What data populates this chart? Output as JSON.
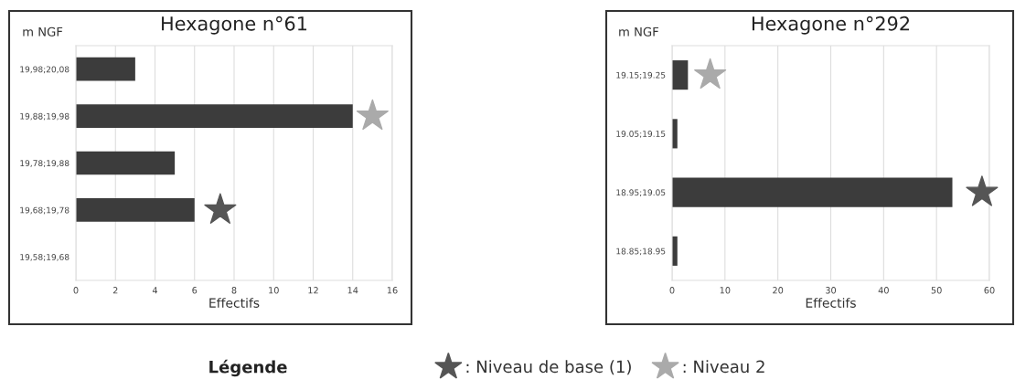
{
  "chart_data": [
    {
      "type": "bar",
      "orientation": "horizontal",
      "title": "Hexagone n°61",
      "xlabel": "Effectifs",
      "ylabel": "m NGF",
      "categories": [
        "19,98;20,08",
        "19,88;19,98",
        "19,78;19,88",
        "19,68;19,78",
        "19,58;19,68"
      ],
      "series": [
        {
          "color": "#3c3c3c",
          "values": [
            3,
            14,
            5,
            6,
            0
          ]
        },
        {
          "type": "scatter",
          "name": ": Niveau de base (1)",
          "color": "#555555",
          "values": [
            null,
            null,
            null,
            7.3,
            null
          ]
        },
        {
          "type": "scatter",
          "name": ": Niveau 2",
          "color": "#aaaaaa",
          "values": [
            null,
            15,
            null,
            null,
            null
          ]
        }
      ],
      "marker": "star",
      "xlim": [
        0,
        16
      ],
      "xticks": [
        0,
        2,
        4,
        6,
        8,
        10,
        12,
        14,
        16
      ],
      "grid": "x",
      "legend": "bottom",
      "legend_title": "Légende"
    },
    {
      "type": "bar",
      "orientation": "horizontal",
      "title": "Hexagone n°292",
      "xlabel": "Effectifs",
      "ylabel": "m NGF",
      "categories": [
        "19.15;19.25",
        "19.05;19.15",
        "18.95;19.05",
        "18.85;18.95"
      ],
      "series": [
        {
          "color": "#3c3c3c",
          "values": [
            3,
            1,
            53,
            1
          ]
        },
        {
          "type": "scatter",
          "color": "#555555",
          "values": [
            null,
            null,
            58.6,
            null
          ]
        },
        {
          "type": "scatter",
          "color": "#aaaaaa",
          "values": [
            7.2,
            null,
            null,
            null
          ]
        }
      ],
      "marker": "star",
      "xlim": [
        0,
        60
      ],
      "xticks": [
        0,
        10,
        20,
        30,
        40,
        50,
        60
      ],
      "grid": "x"
    }
  ]
}
